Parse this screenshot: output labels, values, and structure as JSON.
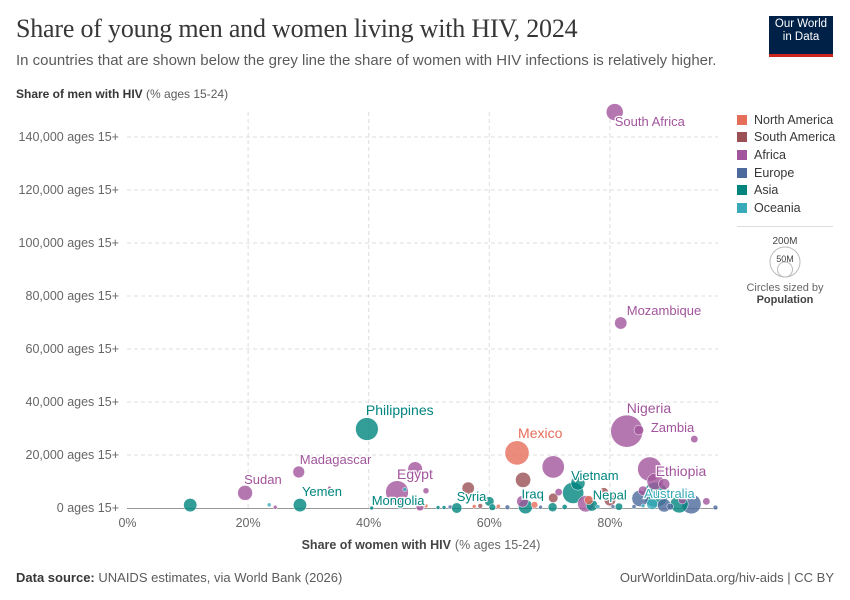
{
  "header": {
    "title": "Share of young men and women living with HIV, 2024",
    "subtitle": "In countries that are shown below the grey line the share of women with HIV infections is relatively higher.",
    "logo_line1": "Our World",
    "logo_line2": "in Data"
  },
  "footer": {
    "source_label": "Data source:",
    "source_text": "UNAIDS estimates, via World Bank (2026)",
    "link": "OurWorldinData.org/hiv-aids | CC BY"
  },
  "size_legend": {
    "large": "200M",
    "small": "50M",
    "caption": "Circles sized by",
    "variable": "Population"
  },
  "chart_data": {
    "type": "scatter",
    "title": "Share of young men and women living with HIV, 2024",
    "xlabel_bold": "Share of women with HIV",
    "xlabel_unit": "(% ages 15-24)",
    "ylabel_bold": "Share of men with HIV",
    "ylabel_unit": "(% ages 15-24)",
    "xlim": [
      0,
      96
    ],
    "ylim": [
      0,
      150000
    ],
    "x_ticks": [
      {
        "v": 0,
        "label": "0%"
      },
      {
        "v": 20,
        "label": "20%"
      },
      {
        "v": 40,
        "label": "40%"
      },
      {
        "v": 60,
        "label": "60%"
      },
      {
        "v": 80,
        "label": "80%"
      }
    ],
    "y_ticks": [
      {
        "v": 0,
        "label": "0 ages 15+"
      },
      {
        "v": 20000,
        "label": "20,000 ages 15+"
      },
      {
        "v": 40000,
        "label": "40,000 ages 15+"
      },
      {
        "v": 60000,
        "label": "60,000 ages 15+"
      },
      {
        "v": 80000,
        "label": "80,000 ages 15+"
      },
      {
        "v": 100000,
        "label": "100,000 ages 15+"
      },
      {
        "v": 120000,
        "label": "120,000 ages 15+"
      },
      {
        "v": 140000,
        "label": "140,000 ages 15+"
      }
    ],
    "grid": true,
    "legend_position": "right",
    "regions": [
      {
        "name": "North America",
        "color": "#e56e5a"
      },
      {
        "name": "South America",
        "color": "#9a5054"
      },
      {
        "name": "Africa",
        "color": "#a2559c"
      },
      {
        "name": "Europe",
        "color": "#4c6a9c"
      },
      {
        "name": "Asia",
        "color": "#00847e"
      },
      {
        "name": "Oceania",
        "color": "#38aaba"
      }
    ],
    "points": [
      {
        "label": "South Africa",
        "region": "Africa",
        "x": 80.8,
        "y": 149400,
        "pop": 64
      },
      {
        "label": "Mozambique",
        "region": "Africa",
        "x": 81.8,
        "y": 69800,
        "pop": 34
      },
      {
        "label": "Nigeria",
        "region": "Africa",
        "x": 82.8,
        "y": 29000,
        "pop": 230
      },
      {
        "label": "Zambia",
        "region": "Africa",
        "x": 84.8,
        "y": 29400,
        "pop": 21
      },
      {
        "label": "",
        "region": "Africa",
        "x": 94.0,
        "y": 26000,
        "pop": 12
      },
      {
        "label": "Philippines",
        "region": "Asia",
        "x": 39.7,
        "y": 29800,
        "pop": 115
      },
      {
        "label": "Mexico",
        "region": "North America",
        "x": 64.6,
        "y": 20800,
        "pop": 130
      },
      {
        "label": "Madagascar",
        "region": "Africa",
        "x": 28.4,
        "y": 13600,
        "pop": 31
      },
      {
        "label": "",
        "region": "Africa",
        "x": 47.7,
        "y": 14700,
        "pop": 48
      },
      {
        "label": "",
        "region": "Africa",
        "x": 70.6,
        "y": 15500,
        "pop": 110
      },
      {
        "label": "Ethiopia",
        "region": "Africa",
        "x": 86.6,
        "y": 14700,
        "pop": 130
      },
      {
        "label": "Sudan",
        "region": "Africa",
        "x": 19.5,
        "y": 5700,
        "pop": 50
      },
      {
        "label": "Egypt",
        "region": "Africa",
        "x": 44.7,
        "y": 6000,
        "pop": 115
      },
      {
        "label": "",
        "region": "Oceania",
        "x": 46.0,
        "y": 7000,
        "pop": 4
      },
      {
        "label": "",
        "region": "Africa",
        "x": 49.5,
        "y": 6500,
        "pop": 8
      },
      {
        "label": "",
        "region": "Africa",
        "x": 33.5,
        "y": 7500,
        "pop": 2
      },
      {
        "label": "",
        "region": "South America",
        "x": 65.6,
        "y": 10600,
        "pop": 52
      },
      {
        "label": "",
        "region": "South America",
        "x": 56.5,
        "y": 7500,
        "pop": 34
      },
      {
        "label": "",
        "region": "South America",
        "x": 70.6,
        "y": 3800,
        "pop": 20
      },
      {
        "label": "",
        "region": "South America",
        "x": 80.0,
        "y": 3000,
        "pop": 30
      },
      {
        "label": "",
        "region": "South America",
        "x": 79.0,
        "y": 6000,
        "pop": 18
      },
      {
        "label": "Vietnam",
        "region": "Asia",
        "x": 73.9,
        "y": 5700,
        "pop": 100
      },
      {
        "label": "",
        "region": "Asia",
        "x": 74.7,
        "y": 9400,
        "pop": 45
      },
      {
        "label": "",
        "region": "Africa",
        "x": 87.5,
        "y": 10000,
        "pop": 60
      },
      {
        "label": "",
        "region": "Africa",
        "x": 89.0,
        "y": 9000,
        "pop": 28
      },
      {
        "label": "",
        "region": "Asia",
        "x": 87.6,
        "y": 5000,
        "pop": 140
      },
      {
        "label": "",
        "region": "Europe",
        "x": 85.0,
        "y": 3600,
        "pop": 60
      },
      {
        "label": "",
        "region": "Europe",
        "x": 93.5,
        "y": 1500,
        "pop": 85
      },
      {
        "label": "",
        "region": "Asia",
        "x": 91.5,
        "y": 1500,
        "pop": 70
      },
      {
        "label": "Australia",
        "region": "Oceania",
        "x": 87.0,
        "y": 1500,
        "pop": 27
      },
      {
        "label": "",
        "region": "Europe",
        "x": 89.0,
        "y": 1000,
        "pop": 40
      },
      {
        "label": "",
        "region": "Africa",
        "x": 96.0,
        "y": 2500,
        "pop": 12
      },
      {
        "label": "",
        "region": "Europe",
        "x": 97.5,
        "y": 200,
        "pop": 5
      },
      {
        "label": "",
        "region": "Asia",
        "x": 10.4,
        "y": 1100,
        "pop": 40
      },
      {
        "label": "Yemen",
        "region": "Asia",
        "x": 28.6,
        "y": 1100,
        "pop": 40
      },
      {
        "label": "",
        "region": "Oceania",
        "x": 23.5,
        "y": 1200,
        "pop": 1
      },
      {
        "label": "",
        "region": "Africa",
        "x": 24.5,
        "y": 300,
        "pop": 1
      },
      {
        "label": "Mongolia",
        "region": "Asia",
        "x": 40.5,
        "y": 0,
        "pop": 3
      },
      {
        "label": "Syria",
        "region": "Asia",
        "x": 54.6,
        "y": 0,
        "pop": 24
      },
      {
        "label": "",
        "region": "Asia",
        "x": 60.0,
        "y": 2500,
        "pop": 20
      },
      {
        "label": "",
        "region": "Asia",
        "x": 60.5,
        "y": 300,
        "pop": 10
      },
      {
        "label": "Iraq",
        "region": "Asia",
        "x": 66.0,
        "y": 500,
        "pop": 45
      },
      {
        "label": "",
        "region": "Africa",
        "x": 65.5,
        "y": 2500,
        "pop": 30
      },
      {
        "label": "",
        "region": "Europe",
        "x": 63.0,
        "y": 300,
        "pop": 5
      },
      {
        "label": "",
        "region": "North America",
        "x": 67.5,
        "y": 1200,
        "pop": 10
      },
      {
        "label": "",
        "region": "North America",
        "x": 61.5,
        "y": 600,
        "pop": 4
      },
      {
        "label": "",
        "region": "Asia",
        "x": 70.5,
        "y": 300,
        "pop": 18
      },
      {
        "label": "Nepal",
        "region": "Asia",
        "x": 77.0,
        "y": 1000,
        "pop": 30
      },
      {
        "label": "",
        "region": "Africa",
        "x": 76.0,
        "y": 1600,
        "pop": 60
      },
      {
        "label": "",
        "region": "North America",
        "x": 76.5,
        "y": 3000,
        "pop": 18
      },
      {
        "label": "",
        "region": "Oceania",
        "x": 78.0,
        "y": 500,
        "pop": 4
      },
      {
        "label": "",
        "region": "Asia",
        "x": 81.5,
        "y": 500,
        "pop": 12
      },
      {
        "label": "",
        "region": "Africa",
        "x": 71.5,
        "y": 6000,
        "pop": 12
      },
      {
        "label": "",
        "region": "Asia",
        "x": 51.5,
        "y": 200,
        "pop": 3
      },
      {
        "label": "",
        "region": "Asia",
        "x": 52.5,
        "y": 200,
        "pop": 3
      },
      {
        "label": "",
        "region": "Europe",
        "x": 53.5,
        "y": 400,
        "pop": 3
      },
      {
        "label": "",
        "region": "North America",
        "x": 57.5,
        "y": 600,
        "pop": 3
      },
      {
        "label": "",
        "region": "South America",
        "x": 58.5,
        "y": 800,
        "pop": 5
      },
      {
        "label": "",
        "region": "Africa",
        "x": 48.5,
        "y": 400,
        "pop": 14
      },
      {
        "label": "",
        "region": "North America",
        "x": 49.5,
        "y": 800,
        "pop": 2
      },
      {
        "label": "",
        "region": "Europe",
        "x": 68.5,
        "y": 300,
        "pop": 3
      },
      {
        "label": "",
        "region": "Asia",
        "x": 72.5,
        "y": 400,
        "pop": 6
      },
      {
        "label": "",
        "region": "Europe",
        "x": 84.0,
        "y": 500,
        "pop": 4
      },
      {
        "label": "",
        "region": "Europe",
        "x": 90.0,
        "y": 500,
        "pop": 10
      },
      {
        "label": "",
        "region": "Africa",
        "x": 92.0,
        "y": 3000,
        "pop": 14
      },
      {
        "label": "",
        "region": "Europe",
        "x": 80.5,
        "y": 500,
        "pop": 3
      },
      {
        "label": "",
        "region": "Africa",
        "x": 85.5,
        "y": 6500,
        "pop": 20
      },
      {
        "label": "",
        "region": "Oceania",
        "x": 85.5,
        "y": 800,
        "pop": 3
      }
    ]
  }
}
